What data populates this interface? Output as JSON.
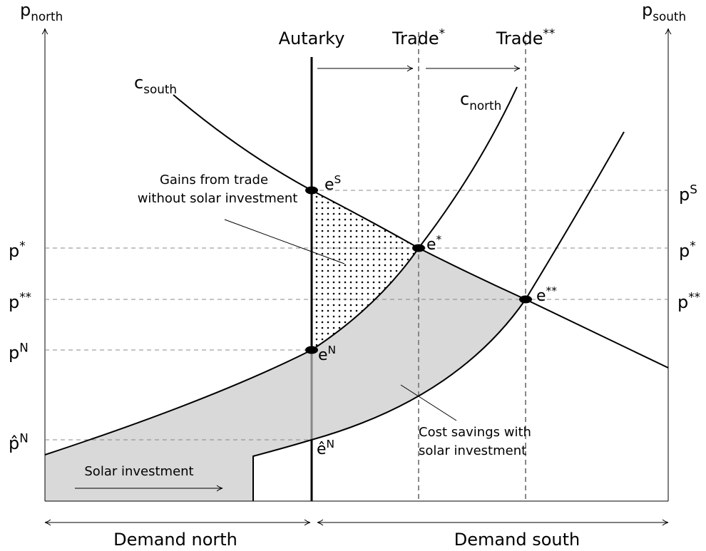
{
  "axes": {
    "left": {
      "base": "p",
      "sub": "north"
    },
    "right": {
      "base": "p",
      "sub": "south"
    }
  },
  "scenarios": [
    {
      "base": "Autarky"
    },
    {
      "base": "Trade",
      "sup": "*"
    },
    {
      "base": "Trade",
      "sup": "**"
    }
  ],
  "curves": [
    {
      "base": "c",
      "sub": "south"
    },
    {
      "base": "c",
      "sub": "north"
    }
  ],
  "points": [
    {
      "base": "e",
      "sup": "S"
    },
    {
      "base": "e",
      "sup": "*"
    },
    {
      "base": "e",
      "sup": "**"
    },
    {
      "base": "e",
      "sup": "N"
    },
    {
      "base": "ê",
      "sup": "N"
    }
  ],
  "prices_left": [
    {
      "base": "p",
      "sup": "*"
    },
    {
      "base": "p",
      "sup": "**"
    },
    {
      "base": "p",
      "sup": "N"
    },
    {
      "base": "p̂",
      "sup": "N"
    }
  ],
  "prices_right": [
    {
      "base": "p",
      "sup": "S"
    },
    {
      "base": "p",
      "sup": "*"
    },
    {
      "base": "p",
      "sup": "**"
    }
  ],
  "annotations": {
    "gains": [
      "Gains from trade",
      "without solar investment"
    ],
    "solar": "Solar investment",
    "savings": [
      "Cost savings with",
      "solar investment"
    ]
  },
  "demand": {
    "north": "Demand north",
    "south": "Demand south"
  }
}
